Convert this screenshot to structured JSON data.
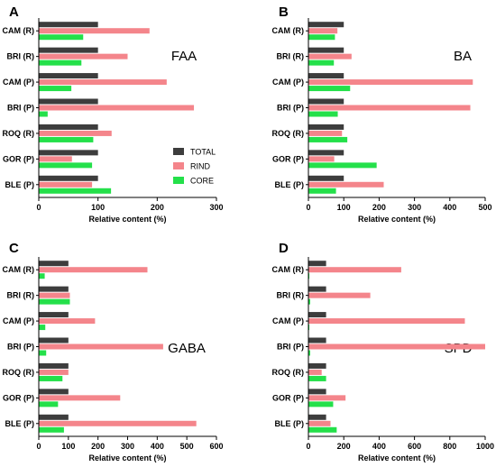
{
  "legend": [
    {
      "name": "TOTAL",
      "color": "#3d3d3d"
    },
    {
      "name": "RIND",
      "color": "#f4858b"
    },
    {
      "name": "CORE",
      "color": "#24e04a"
    }
  ],
  "chart_data": [
    {
      "panel": "A",
      "title": "FAA",
      "type": "bar",
      "orientation": "horizontal",
      "xlabel": "Relative content (%)",
      "xlim": [
        0,
        300
      ],
      "xticks": [
        0,
        100,
        200,
        300
      ],
      "categories": [
        "CAM (R)",
        "BRI (R)",
        "CAM (P)",
        "BRI (P)",
        "ROQ (R)",
        "GOR (P)",
        "BLE (P)"
      ],
      "series": [
        {
          "name": "TOTAL",
          "values": [
            100,
            100,
            100,
            100,
            100,
            100,
            100
          ]
        },
        {
          "name": "RIND",
          "values": [
            187,
            150,
            216,
            262,
            123,
            56,
            90
          ]
        },
        {
          "name": "CORE",
          "values": [
            75,
            72,
            55,
            15,
            92,
            90,
            122
          ]
        }
      ],
      "legend_position": "right-middle"
    },
    {
      "panel": "B",
      "title": "BA",
      "type": "bar",
      "orientation": "horizontal",
      "xlabel": "Relative content (%)",
      "xlim": [
        0,
        500
      ],
      "xticks": [
        0,
        100,
        200,
        300,
        400,
        500
      ],
      "categories": [
        "CAM (R)",
        "BRI (R)",
        "CAM (P)",
        "BRI (P)",
        "ROQ (R)",
        "GOR (P)",
        "BLE (P)"
      ],
      "series": [
        {
          "name": "TOTAL",
          "values": [
            100,
            100,
            100,
            100,
            100,
            100,
            100
          ]
        },
        {
          "name": "RIND",
          "values": [
            82,
            122,
            465,
            458,
            95,
            73,
            213
          ]
        },
        {
          "name": "CORE",
          "values": [
            75,
            72,
            118,
            83,
            110,
            193,
            78
          ]
        }
      ]
    },
    {
      "panel": "C",
      "title": "GABA",
      "type": "bar",
      "orientation": "horizontal",
      "xlabel": "Relative content (%)",
      "xlim": [
        0,
        600
      ],
      "xticks": [
        0,
        100,
        200,
        300,
        400,
        500,
        600
      ],
      "categories": [
        "CAM (R)",
        "BRI (R)",
        "CAM (P)",
        "BRI (P)",
        "ROQ (R)",
        "GOR (P)",
        "BLE (P)"
      ],
      "series": [
        {
          "name": "TOTAL",
          "values": [
            100,
            100,
            100,
            100,
            100,
            100,
            100
          ]
        },
        {
          "name": "RIND",
          "values": [
            367,
            105,
            190,
            420,
            100,
            275,
            532
          ]
        },
        {
          "name": "CORE",
          "values": [
            20,
            105,
            22,
            25,
            80,
            65,
            85
          ]
        }
      ]
    },
    {
      "panel": "D",
      "title": "SPD",
      "type": "bar",
      "orientation": "horizontal",
      "xlabel": "Relative content (%)",
      "xlim": [
        0,
        1000
      ],
      "xticks": [
        0,
        200,
        400,
        600,
        800,
        1000
      ],
      "categories": [
        "CAM (R)",
        "BRI (R)",
        "CAM (P)",
        "BRI (P)",
        "ROQ (R)",
        "GOR (P)",
        "BLE (P)"
      ],
      "series": [
        {
          "name": "TOTAL",
          "values": [
            100,
            100,
            100,
            100,
            100,
            100,
            100
          ]
        },
        {
          "name": "RIND",
          "values": [
            525,
            350,
            885,
            1000,
            75,
            210,
            125
          ]
        },
        {
          "name": "CORE",
          "values": [
            5,
            10,
            5,
            10,
            100,
            140,
            160
          ]
        }
      ]
    }
  ]
}
